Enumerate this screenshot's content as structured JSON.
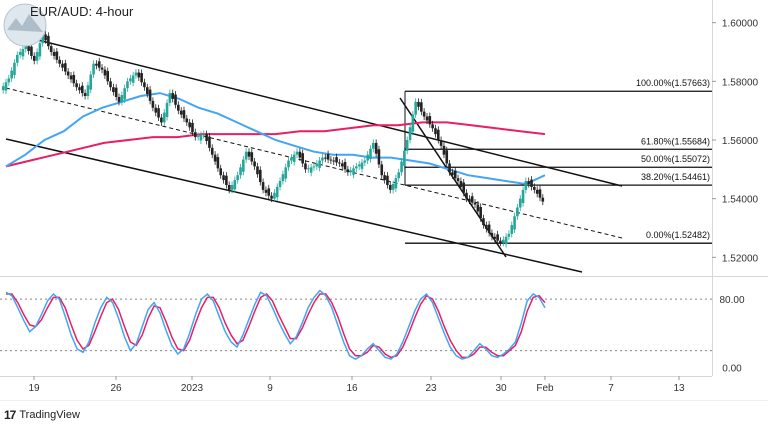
{
  "title": "EUR/AUD: 4-hour",
  "brand": "TradingView",
  "brand_icon": "tradingview-logo-icon",
  "colors": {
    "up": "#26a69a",
    "down": "#222222",
    "sma_fast": "#42a5f5",
    "sma_slow": "#e91e63",
    "stoch_k": "#42a5f5",
    "stoch_d": "#e91e63",
    "trend": "#111111"
  },
  "chart_data": {
    "type": "line",
    "title": "EUR/AUD: 4-hour",
    "xlabel": "",
    "ylabel": "",
    "price_axis": {
      "ylim": [
        1.515,
        1.605
      ],
      "ticks": [
        "1.60000",
        "1.58000",
        "1.56000",
        "1.54000",
        "1.52000"
      ]
    },
    "time_axis": {
      "ticks": [
        "19",
        "26",
        "2023",
        "9",
        "16",
        "23",
        "30",
        "Feb",
        "7",
        "13"
      ]
    },
    "grid": false,
    "series": [
      {
        "values": [
          1.581,
          1.589,
          1.592,
          1.587,
          1.596,
          1.59,
          1.586,
          1.582,
          1.578,
          1.575,
          1.586,
          1.584,
          1.578,
          1.573,
          1.58,
          1.583,
          1.578,
          1.571,
          1.566,
          1.576,
          1.57,
          1.566,
          1.561,
          1.562,
          1.555,
          1.548,
          1.543,
          1.548,
          1.556,
          1.551,
          1.543,
          1.54,
          1.546,
          1.553,
          1.556,
          1.55,
          1.551,
          1.554,
          1.553,
          1.552,
          1.549,
          1.551,
          1.553,
          1.559,
          1.548,
          1.543,
          1.549,
          1.56,
          1.573,
          1.568,
          1.564,
          1.558,
          1.549,
          1.546,
          1.54,
          1.538,
          1.531,
          1.527,
          1.525,
          1.528,
          1.537,
          1.546,
          1.543,
          1.539
        ]
      },
      {
        "values": [
          1.551,
          1.555,
          1.56,
          1.563,
          1.568,
          1.571,
          1.573,
          1.575,
          1.576,
          1.574,
          1.571,
          1.569,
          1.566,
          1.563,
          1.56,
          1.558,
          1.556,
          1.555,
          1.555,
          1.554,
          1.554,
          1.553,
          1.552,
          1.55,
          1.548,
          1.547,
          1.546,
          1.545,
          1.548
        ]
      },
      {
        "values": [
          1.551,
          1.553,
          1.555,
          1.557,
          1.559,
          1.56,
          1.561,
          1.561,
          1.562,
          1.562,
          1.562,
          1.562,
          1.563,
          1.563,
          1.564,
          1.565,
          1.565,
          1.566,
          1.566,
          1.565,
          1.564,
          1.563,
          1.562
        ]
      }
    ],
    "fibonacci": [
      {
        "label": "100.00%(1.57663)",
        "value": 1.57663
      },
      {
        "label": "61.80%(1.55684)",
        "value": 1.55684
      },
      {
        "label": "50.00%(1.55072)",
        "value": 1.55072
      },
      {
        "label": "38.20%(1.54461)",
        "value": 1.54461
      },
      {
        "label": "0.00%(1.52482)",
        "value": 1.52482
      }
    ],
    "oscillator": {
      "ticks": [
        "80.00",
        "0.00"
      ],
      "ylim": [
        -5,
        100
      ],
      "levels": [
        80,
        20
      ],
      "k": [
        88,
        84,
        70,
        55,
        42,
        48,
        62,
        78,
        86,
        80,
        60,
        38,
        22,
        18,
        30,
        52,
        70,
        82,
        76,
        58,
        36,
        20,
        28,
        48,
        68,
        76,
        64,
        44,
        26,
        16,
        22,
        40,
        62,
        80,
        86,
        78,
        60,
        42,
        30,
        24,
        38,
        56,
        74,
        88,
        84,
        70,
        54,
        40,
        28,
        36,
        52,
        70,
        82,
        90,
        84,
        70,
        50,
        30,
        14,
        10,
        14,
        22,
        28,
        20,
        12,
        10,
        16,
        30,
        48,
        66,
        80,
        86,
        76,
        58,
        40,
        24,
        14,
        10,
        12,
        20,
        28,
        22,
        14,
        12,
        16,
        22,
        30,
        52,
        78,
        86,
        82,
        70
      ],
      "d": [
        86,
        86,
        76,
        62,
        50,
        48,
        56,
        70,
        82,
        82,
        70,
        50,
        32,
        22,
        26,
        42,
        60,
        76,
        80,
        68,
        48,
        30,
        26,
        38,
        58,
        72,
        70,
        54,
        36,
        22,
        20,
        32,
        52,
        70,
        82,
        82,
        70,
        52,
        38,
        28,
        32,
        48,
        66,
        82,
        86,
        78,
        62,
        48,
        34,
        34,
        46,
        62,
        76,
        86,
        86,
        76,
        60,
        40,
        22,
        14,
        14,
        18,
        26,
        24,
        16,
        12,
        14,
        24,
        40,
        58,
        74,
        84,
        80,
        66,
        48,
        32,
        20,
        12,
        12,
        16,
        24,
        24,
        18,
        14,
        14,
        20,
        26,
        42,
        66,
        82,
        84,
        76
      ]
    }
  }
}
